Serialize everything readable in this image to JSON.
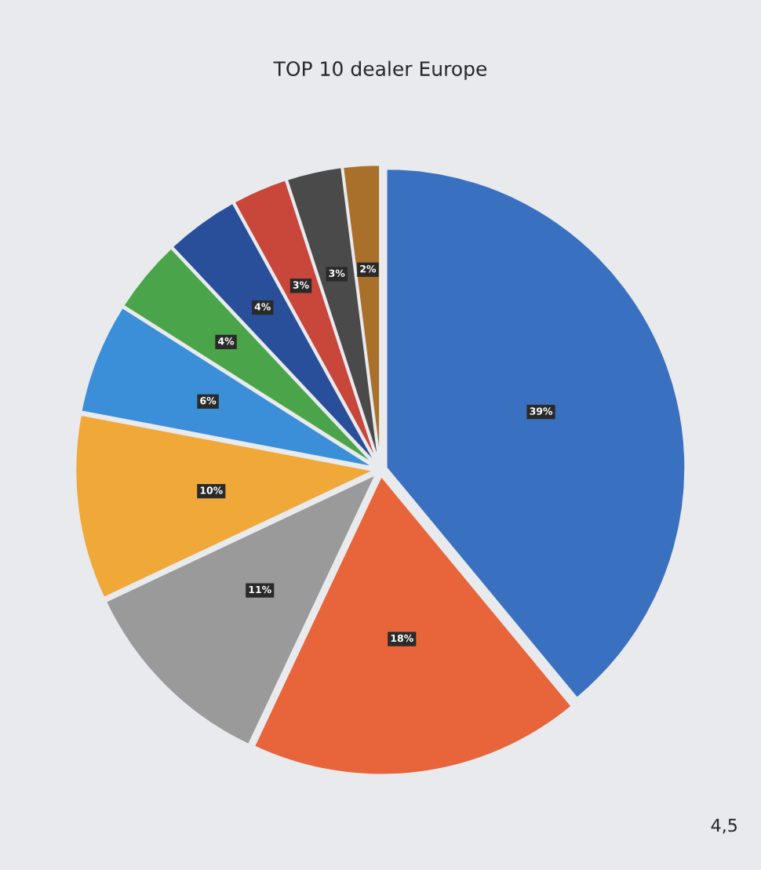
{
  "chart_data": {
    "type": "pie",
    "title": "TOP 10 dealer Europe",
    "categories": [
      null,
      null,
      null,
      null,
      null,
      null,
      null,
      null,
      null,
      null
    ],
    "values": [
      39,
      18,
      11,
      10,
      6,
      4,
      4,
      3,
      3,
      2
    ],
    "colors": [
      "#3a70c0",
      "#e8643a",
      "#9a9a9a",
      "#f0a838",
      "#3a8fd8",
      "#4aa54a",
      "#2a4f9a",
      "#c8463a",
      "#4a4a4a",
      "#a8702a"
    ],
    "value_labels": [
      "39%",
      "18%",
      "11%",
      "10%",
      "6%",
      "4%",
      "4%",
      "3%",
      "3%",
      "2%"
    ],
    "annotations": [
      "4,5"
    ]
  }
}
